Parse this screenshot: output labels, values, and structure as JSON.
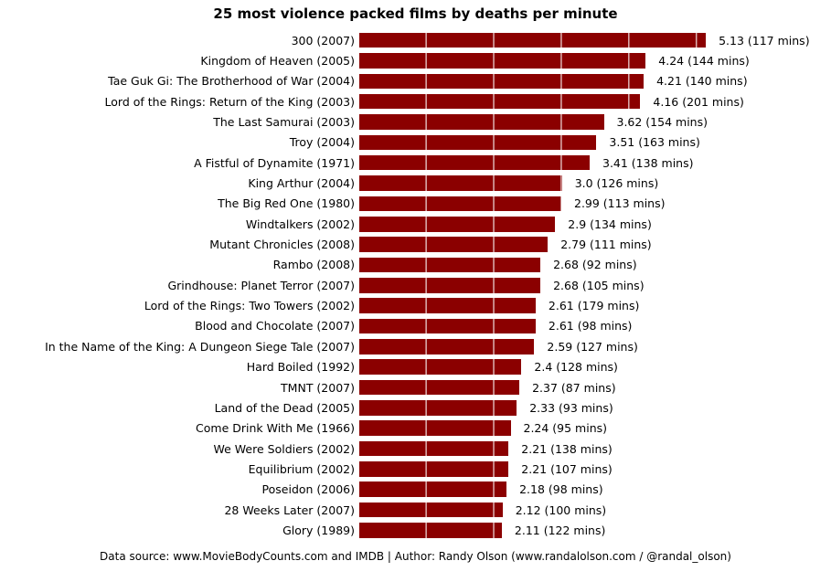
{
  "title": "25 most violence packed films by deaths per minute",
  "footer": "Data source: www.MovieBodyCounts.com and IMDB | Author: Randy Olson (www.randalolson.com / @randal_olson)",
  "colors": {
    "bar": "#8b0000",
    "gridline": "#ffffff",
    "text": "#000000",
    "background": "#ffffff"
  },
  "chart_data": {
    "type": "bar",
    "orientation": "horizontal",
    "title": "25 most violence packed films by deaths per minute",
    "xlabel": "",
    "ylabel": "",
    "xlim": [
      0,
      5.5
    ],
    "x_gridline_interval": 1.0,
    "grid": true,
    "legend": false,
    "categories": [
      "300 (2007)",
      "Kingdom of Heaven (2005)",
      "Tae Guk Gi: The Brotherhood of War (2004)",
      "Lord of the Rings: Return of the King (2003)",
      "The Last Samurai (2003)",
      "Troy (2004)",
      "A Fistful of Dynamite (1971)",
      "King Arthur (2004)",
      "The Big Red One (1980)",
      "Windtalkers (2002)",
      "Mutant Chronicles (2008)",
      "Rambo (2008)",
      "Grindhouse: Planet Terror (2007)",
      "Lord of the Rings: Two Towers (2002)",
      "Blood and Chocolate (2007)",
      "In the Name of the King: A Dungeon Siege Tale (2007)",
      "Hard Boiled (1992)",
      "TMNT (2007)",
      "Land of the Dead (2005)",
      "Come Drink With Me (1966)",
      "We Were Soldiers (2002)",
      "Equilibrium (2002)",
      "Poseidon (2006)",
      "28 Weeks Later (2007)",
      "Glory (1989)"
    ],
    "values": [
      5.13,
      4.24,
      4.21,
      4.16,
      3.62,
      3.51,
      3.41,
      3.0,
      2.99,
      2.9,
      2.79,
      2.68,
      2.68,
      2.61,
      2.61,
      2.59,
      2.4,
      2.37,
      2.33,
      2.24,
      2.21,
      2.21,
      2.18,
      2.12,
      2.11
    ],
    "runtime_mins": [
      117,
      144,
      140,
      201,
      154,
      163,
      138,
      126,
      113,
      134,
      111,
      92,
      105,
      179,
      98,
      127,
      128,
      87,
      93,
      95,
      138,
      107,
      98,
      100,
      122
    ],
    "value_labels": [
      "5.13 (117 mins)",
      "4.24 (144 mins)",
      "4.21 (140 mins)",
      "4.16 (201 mins)",
      "3.62 (154 mins)",
      "3.51 (163 mins)",
      "3.41 (138 mins)",
      "3.0 (126 mins)",
      "2.99 (113 mins)",
      "2.9 (134 mins)",
      "2.79 (111 mins)",
      "2.68 (92 mins)",
      "2.68 (105 mins)",
      "2.61 (179 mins)",
      "2.61 (98 mins)",
      "2.59 (127 mins)",
      "2.4 (128 mins)",
      "2.37 (87 mins)",
      "2.33 (93 mins)",
      "2.24 (95 mins)",
      "2.21 (138 mins)",
      "2.21 (107 mins)",
      "2.18 (98 mins)",
      "2.12 (100 mins)",
      "2.11 (122 mins)"
    ]
  }
}
